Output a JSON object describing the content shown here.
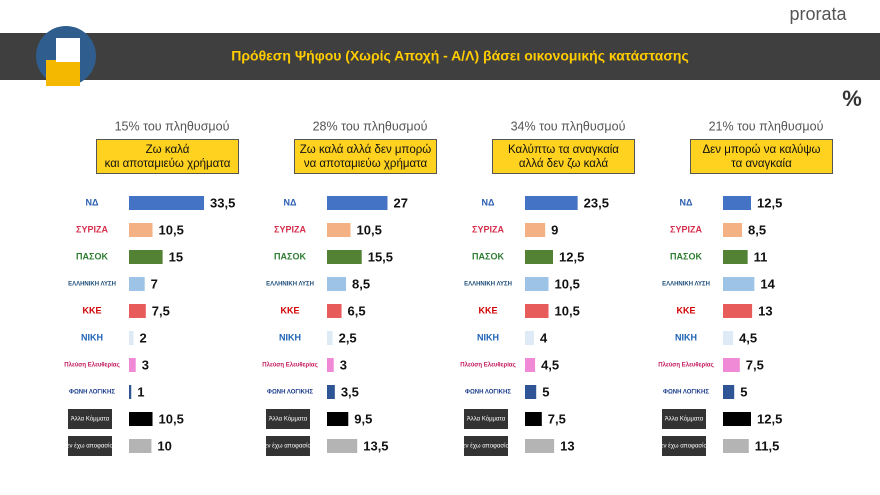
{
  "header": {
    "title": "Πρόθεση Ψήφου (Χωρίς Αποχή - Α/Λ) βάσει οικονομικής κατάστασης",
    "brand": "prorata",
    "icon": "%"
  },
  "chart_data": [
    {
      "type": "bar",
      "orientation": "horizontal",
      "subtitle": "15% του πληθυσμού",
      "title": "Ζω καλά\nκαι αποταμιεύω χρήματα",
      "categories": [
        "ΝΔ",
        "ΣΥΡΙΖΑ",
        "ΠΑΣΟΚ",
        "ΕΛΛΗΝΙΚΗ ΛΥΣΗ",
        "ΚΚΕ",
        "ΝΙΚΗ",
        "Πλεύση Ελευθερίας",
        "ΦΩΝΗ ΛΟΓΙΚΗΣ",
        "Άλλα Κόμματα",
        "Δεν έχω αποφασίσει"
      ],
      "values": [
        33.5,
        10.5,
        15,
        7,
        7.5,
        2,
        3,
        1,
        10.5,
        10
      ],
      "value_labels": [
        "33,5",
        "10,5",
        "15",
        "7",
        "7,5",
        "2",
        "3",
        "1",
        "10,5",
        "10"
      ],
      "colors": [
        "#4472c4",
        "#f4b183",
        "#548235",
        "#9dc3e6",
        "#e85b5b",
        "#deebf7",
        "#f08ad6",
        "#2f5597",
        "#000000",
        "#b4b4b4"
      ]
    },
    {
      "type": "bar",
      "orientation": "horizontal",
      "subtitle": "28% του πληθυσμού",
      "title": "Ζω καλά αλλά δεν μπορώ\nνα αποταμιεύω χρήματα",
      "categories": [
        "ΝΔ",
        "ΣΥΡΙΖΑ",
        "ΠΑΣΟΚ",
        "ΕΛΛΗΝΙΚΗ ΛΥΣΗ",
        "ΚΚΕ",
        "ΝΙΚΗ",
        "Πλεύση Ελευθερίας",
        "ΦΩΝΗ ΛΟΓΙΚΗΣ",
        "Άλλα Κόμματα",
        "Δεν έχω αποφασίσει"
      ],
      "values": [
        27,
        10.5,
        15.5,
        8.5,
        6.5,
        2.5,
        3,
        3.5,
        9.5,
        13.5
      ],
      "value_labels": [
        "27",
        "10,5",
        "15,5",
        "8,5",
        "6,5",
        "2,5",
        "3",
        "3,5",
        "9,5",
        "13,5"
      ],
      "colors": [
        "#4472c4",
        "#f4b183",
        "#548235",
        "#9dc3e6",
        "#e85b5b",
        "#deebf7",
        "#f08ad6",
        "#2f5597",
        "#000000",
        "#b4b4b4"
      ]
    },
    {
      "type": "bar",
      "orientation": "horizontal",
      "subtitle": "34% του πληθυσμού",
      "title": "Καλύπτω τα αναγκαία\nαλλά δεν ζω καλά",
      "categories": [
        "ΝΔ",
        "ΣΥΡΙΖΑ",
        "ΠΑΣΟΚ",
        "ΕΛΛΗΝΙΚΗ ΛΥΣΗ",
        "ΚΚΕ",
        "ΝΙΚΗ",
        "Πλεύση Ελευθερίας",
        "ΦΩΝΗ ΛΟΓΙΚΗΣ",
        "Άλλα Κόμματα",
        "Δεν έχω αποφασίσει"
      ],
      "values": [
        23.5,
        9,
        12.5,
        10.5,
        10.5,
        4,
        4.5,
        5,
        7.5,
        13
      ],
      "value_labels": [
        "23,5",
        "9",
        "12,5",
        "10,5",
        "10,5",
        "4",
        "4,5",
        "5",
        "7,5",
        "13"
      ],
      "colors": [
        "#4472c4",
        "#f4b183",
        "#548235",
        "#9dc3e6",
        "#e85b5b",
        "#deebf7",
        "#f08ad6",
        "#2f5597",
        "#000000",
        "#b4b4b4"
      ]
    },
    {
      "type": "bar",
      "orientation": "horizontal",
      "subtitle": "21% του πληθυσμού",
      "title": "Δεν μπορώ να καλύψω\nτα αναγκαία",
      "categories": [
        "ΝΔ",
        "ΣΥΡΙΖΑ",
        "ΠΑΣΟΚ",
        "ΕΛΛΗΝΙΚΗ ΛΥΣΗ",
        "ΚΚΕ",
        "ΝΙΚΗ",
        "Πλεύση Ελευθερίας",
        "ΦΩΝΗ ΛΟΓΙΚΗΣ",
        "Άλλα Κόμματα",
        "Δεν έχω αποφασίσει"
      ],
      "values": [
        12.5,
        8.5,
        11,
        14,
        13,
        4.5,
        7.5,
        5,
        12.5,
        11.5
      ],
      "value_labels": [
        "12,5",
        "8,5",
        "11",
        "14",
        "13",
        "4,5",
        "7,5",
        "5",
        "12,5",
        "11,5"
      ],
      "colors": [
        "#4472c4",
        "#f4b183",
        "#548235",
        "#9dc3e6",
        "#e85b5b",
        "#deebf7",
        "#f08ad6",
        "#2f5597",
        "#000000",
        "#b4b4b4"
      ]
    }
  ]
}
